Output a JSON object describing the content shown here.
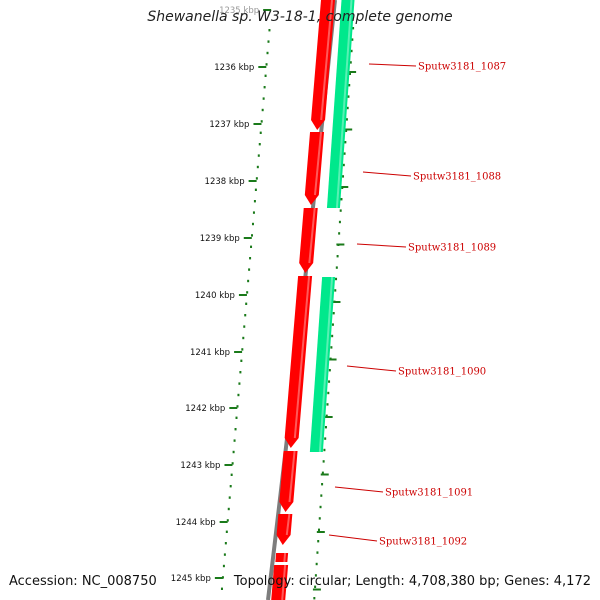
{
  "title": "Shewanella sp. W3-18-1, complete genome",
  "footer": {
    "accession": "Accession: NC_008750",
    "summary": "Topology: circular; Length: 4,708,380 bp; Genes: 4,172"
  },
  "colors": {
    "backbone": "#7d7d7d",
    "forward_gene": "#ff0000",
    "reverse_gene": "#00e88c",
    "tick": "#1a7a1a",
    "gene_label": "#cc0000",
    "leader_line": "#cc0000"
  },
  "ticks": [
    {
      "kbp": 1235,
      "label": "1235 kbp"
    },
    {
      "kbp": 1236,
      "label": "1236 kbp"
    },
    {
      "kbp": 1237,
      "label": "1237 kbp"
    },
    {
      "kbp": 1238,
      "label": "1238 kbp"
    },
    {
      "kbp": 1239,
      "label": "1239 kbp"
    },
    {
      "kbp": 1240,
      "label": "1240 kbp"
    },
    {
      "kbp": 1241,
      "label": "1241 kbp"
    },
    {
      "kbp": 1242,
      "label": "1242 kbp"
    },
    {
      "kbp": 1243,
      "label": "1243 kbp"
    },
    {
      "kbp": 1244,
      "label": "1244 kbp"
    },
    {
      "kbp": 1245,
      "label": "1245 kbp"
    }
  ],
  "genes": [
    {
      "name": "Sputw3181_1087"
    },
    {
      "name": "Sputw3181_1088"
    },
    {
      "name": "Sputw3181_1089"
    },
    {
      "name": "Sputw3181_1090"
    },
    {
      "name": "Sputw3181_1091"
    },
    {
      "name": "Sputw3181_1092"
    }
  ]
}
